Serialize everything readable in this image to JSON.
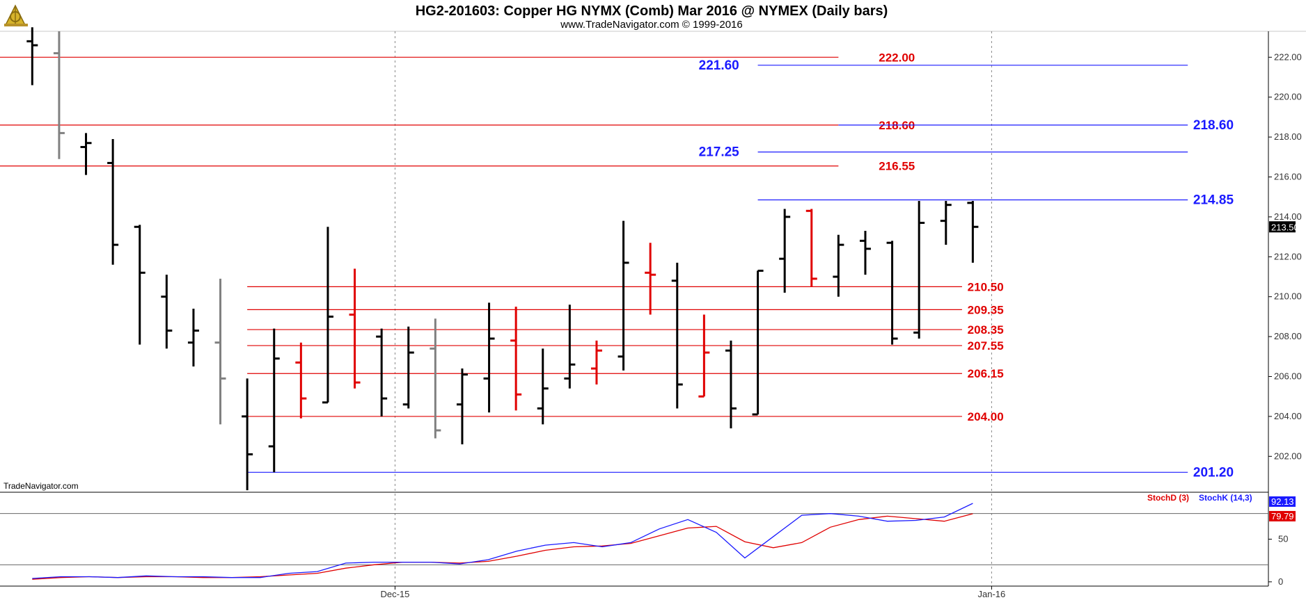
{
  "header": {
    "title": "HG2-201603:  Copper HG NYMX (Comb) Mar 2016 @ NYMEX  (Daily bars)",
    "subtitle": "www.TradeNavigator.com © 1999-2016"
  },
  "watermark": "TradeNavigator.com",
  "icons": {
    "logo": "sextant-logo-icon"
  },
  "colors": {
    "up_bar": "#000000",
    "down_bar": "#e00000",
    "neutral_bar": "#808080",
    "support_line": "#e00000",
    "resistance_line": "#1a1aff",
    "stoch_d": "#e00000",
    "stoch_k": "#1a1aff",
    "axis_bg": "#ffffff",
    "price_tag_bg": "#000000"
  },
  "chart_data": {
    "type": "ohlc",
    "price_axis": {
      "ylim": [
        200.2,
        223.3
      ],
      "ticks": [
        "202.00",
        "204.00",
        "206.00",
        "208.00",
        "210.00",
        "212.00",
        "214.00",
        "216.00",
        "218.00",
        "220.00",
        "222.00"
      ]
    },
    "x_axis": {
      "labels": [
        "Dec-15",
        "Jan-16"
      ],
      "label_bar_index": [
        13.5,
        35.7
      ],
      "xlim": [
        -1.2,
        46
      ]
    },
    "last_price": "213.50",
    "bars": [
      {
        "o": 222.8,
        "h": 223.5,
        "l": 220.6,
        "c": 222.6,
        "color": "up"
      },
      {
        "o": 222.2,
        "h": 223.3,
        "l": 216.9,
        "c": 218.2,
        "color": "neutral"
      },
      {
        "o": 217.5,
        "h": 218.2,
        "l": 216.1,
        "c": 217.7,
        "color": "up"
      },
      {
        "o": 216.7,
        "h": 217.9,
        "l": 211.6,
        "c": 212.6,
        "color": "up"
      },
      {
        "o": 213.5,
        "h": 213.6,
        "l": 207.6,
        "c": 211.2,
        "color": "up"
      },
      {
        "o": 210.0,
        "h": 211.1,
        "l": 207.4,
        "c": 208.3,
        "color": "up"
      },
      {
        "o": 207.7,
        "h": 209.4,
        "l": 206.5,
        "c": 208.3,
        "color": "up"
      },
      {
        "o": 207.7,
        "h": 210.9,
        "l": 203.6,
        "c": 205.9,
        "color": "neutral"
      },
      {
        "o": 204.0,
        "h": 205.9,
        "l": 200.3,
        "c": 202.1,
        "color": "up"
      },
      {
        "o": 202.5,
        "h": 208.4,
        "l": 201.2,
        "c": 206.9,
        "color": "up"
      },
      {
        "o": 206.7,
        "h": 207.7,
        "l": 203.9,
        "c": 204.9,
        "color": "down"
      },
      {
        "o": 204.7,
        "h": 213.5,
        "l": 204.7,
        "c": 209.0,
        "color": "up"
      },
      {
        "o": 209.1,
        "h": 211.4,
        "l": 205.4,
        "c": 205.7,
        "color": "down"
      },
      {
        "o": 208.0,
        "h": 208.4,
        "l": 204.0,
        "c": 204.9,
        "color": "up"
      },
      {
        "o": 204.6,
        "h": 208.5,
        "l": 204.4,
        "c": 207.2,
        "color": "up"
      },
      {
        "o": 207.4,
        "h": 208.9,
        "l": 202.9,
        "c": 203.3,
        "color": "neutral"
      },
      {
        "o": 204.6,
        "h": 206.4,
        "l": 202.6,
        "c": 206.1,
        "color": "up"
      },
      {
        "o": 205.9,
        "h": 209.7,
        "l": 204.2,
        "c": 207.9,
        "color": "up"
      },
      {
        "o": 207.8,
        "h": 209.5,
        "l": 204.3,
        "c": 205.1,
        "color": "down"
      },
      {
        "o": 204.4,
        "h": 207.4,
        "l": 203.6,
        "c": 205.4,
        "color": "up"
      },
      {
        "o": 205.9,
        "h": 209.6,
        "l": 205.4,
        "c": 206.6,
        "color": "up"
      },
      {
        "o": 206.4,
        "h": 207.8,
        "l": 205.6,
        "c": 207.3,
        "color": "down"
      },
      {
        "o": 207.0,
        "h": 213.8,
        "l": 206.3,
        "c": 211.7,
        "color": "up"
      },
      {
        "o": 211.2,
        "h": 212.7,
        "l": 209.1,
        "c": 211.1,
        "color": "down"
      },
      {
        "o": 210.8,
        "h": 211.7,
        "l": 204.4,
        "c": 205.6,
        "color": "up"
      },
      {
        "o": 205.0,
        "h": 209.1,
        "l": 205.0,
        "c": 207.2,
        "color": "down"
      },
      {
        "o": 207.3,
        "h": 207.8,
        "l": 203.4,
        "c": 204.4,
        "color": "up"
      },
      {
        "o": 204.1,
        "h": 211.3,
        "l": 204.1,
        "c": 211.3,
        "color": "up"
      },
      {
        "o": 211.9,
        "h": 214.4,
        "l": 210.2,
        "c": 214.0,
        "color": "up"
      },
      {
        "o": 214.3,
        "h": 214.4,
        "l": 210.5,
        "c": 210.9,
        "color": "down"
      },
      {
        "o": 211.0,
        "h": 213.1,
        "l": 210.0,
        "c": 212.6,
        "color": "up"
      },
      {
        "o": 212.8,
        "h": 213.3,
        "l": 211.1,
        "c": 212.4,
        "color": "up"
      },
      {
        "o": 212.7,
        "h": 212.8,
        "l": 207.6,
        "c": 207.9,
        "color": "up"
      },
      {
        "o": 208.2,
        "h": 214.8,
        "l": 207.9,
        "c": 213.7,
        "color": "up"
      },
      {
        "o": 213.8,
        "h": 214.8,
        "l": 212.6,
        "c": 214.6,
        "color": "up"
      },
      {
        "o": 214.7,
        "h": 214.8,
        "l": 211.7,
        "c": 213.5,
        "color": "up"
      }
    ],
    "levels": [
      {
        "value": 222.0,
        "label": "222.00",
        "color": "red",
        "from_bar": -1.2,
        "to_bar": 30.0,
        "label_bar": 31.5,
        "label_size": "normal"
      },
      {
        "value": 221.6,
        "label": "221.60",
        "color": "blue",
        "from_bar": 27.0,
        "to_bar": 43.0,
        "label_bar": 24.8,
        "label_size": "big"
      },
      {
        "value": 218.6,
        "label": "218.60",
        "color": "red",
        "from_bar": -1.2,
        "to_bar": 30.0,
        "label_bar": 31.5,
        "label_size": "normal"
      },
      {
        "value": 218.6,
        "label": "218.60",
        "color": "blue",
        "from_bar": 30.0,
        "to_bar": 43.0,
        "label_bar": 43.2,
        "label_size": "big"
      },
      {
        "value": 217.25,
        "label": "217.25",
        "color": "blue",
        "from_bar": 27.0,
        "to_bar": 43.0,
        "label_bar": 24.8,
        "label_size": "big"
      },
      {
        "value": 216.55,
        "label": "216.55",
        "color": "red",
        "from_bar": -1.2,
        "to_bar": 30.0,
        "label_bar": 31.5,
        "label_size": "normal"
      },
      {
        "value": 214.85,
        "label": "214.85",
        "color": "blue",
        "from_bar": 27.0,
        "to_bar": 43.0,
        "label_bar": 43.2,
        "label_size": "big"
      },
      {
        "value": 210.5,
        "label": "210.50",
        "color": "red",
        "from_bar": 8.0,
        "to_bar": 34.6,
        "label_bar": 34.8,
        "label_size": "normal"
      },
      {
        "value": 209.35,
        "label": "209.35",
        "color": "red",
        "from_bar": 8.0,
        "to_bar": 34.6,
        "label_bar": 34.8,
        "label_size": "normal"
      },
      {
        "value": 208.35,
        "label": "208.35",
        "color": "red",
        "from_bar": 8.0,
        "to_bar": 34.6,
        "label_bar": 34.8,
        "label_size": "normal"
      },
      {
        "value": 207.55,
        "label": "207.55",
        "color": "red",
        "from_bar": 8.0,
        "to_bar": 34.6,
        "label_bar": 34.8,
        "label_size": "normal"
      },
      {
        "value": 206.15,
        "label": "206.15",
        "color": "red",
        "from_bar": 8.0,
        "to_bar": 34.6,
        "label_bar": 34.8,
        "label_size": "normal"
      },
      {
        "value": 204.0,
        "label": "204.00",
        "color": "red",
        "from_bar": 8.0,
        "to_bar": 34.6,
        "label_bar": 34.8,
        "label_size": "normal"
      },
      {
        "value": 201.2,
        "label": "201.20",
        "color": "blue",
        "from_bar": 8.0,
        "to_bar": 43.0,
        "label_bar": 43.2,
        "label_size": "big"
      }
    ],
    "indicator": {
      "ylim": [
        -5,
        105
      ],
      "ticks": [
        "0",
        "50"
      ],
      "reference_lines": [
        20,
        80
      ],
      "last_k": "92.13",
      "last_d": "79.79",
      "legend": [
        "StochD (3)",
        "StochK (14,3)"
      ],
      "stoch_k": [
        4,
        6,
        6,
        5,
        7,
        6,
        6,
        5,
        5,
        10,
        12,
        22,
        23,
        23,
        23,
        21,
        26,
        36,
        43,
        46,
        41,
        46,
        62,
        73,
        58,
        28,
        53,
        78,
        80,
        77,
        71,
        72,
        76,
        92
      ],
      "stoch_d": [
        3,
        5,
        6,
        5,
        6,
        6,
        5,
        5,
        6,
        8,
        10,
        16,
        20,
        23,
        23,
        22,
        24,
        30,
        37,
        41,
        42,
        45,
        54,
        63,
        65,
        47,
        40,
        46,
        64,
        73,
        77,
        74,
        71,
        79.79
      ],
      "start_bar": 0,
      "end_bar": 35
    }
  }
}
